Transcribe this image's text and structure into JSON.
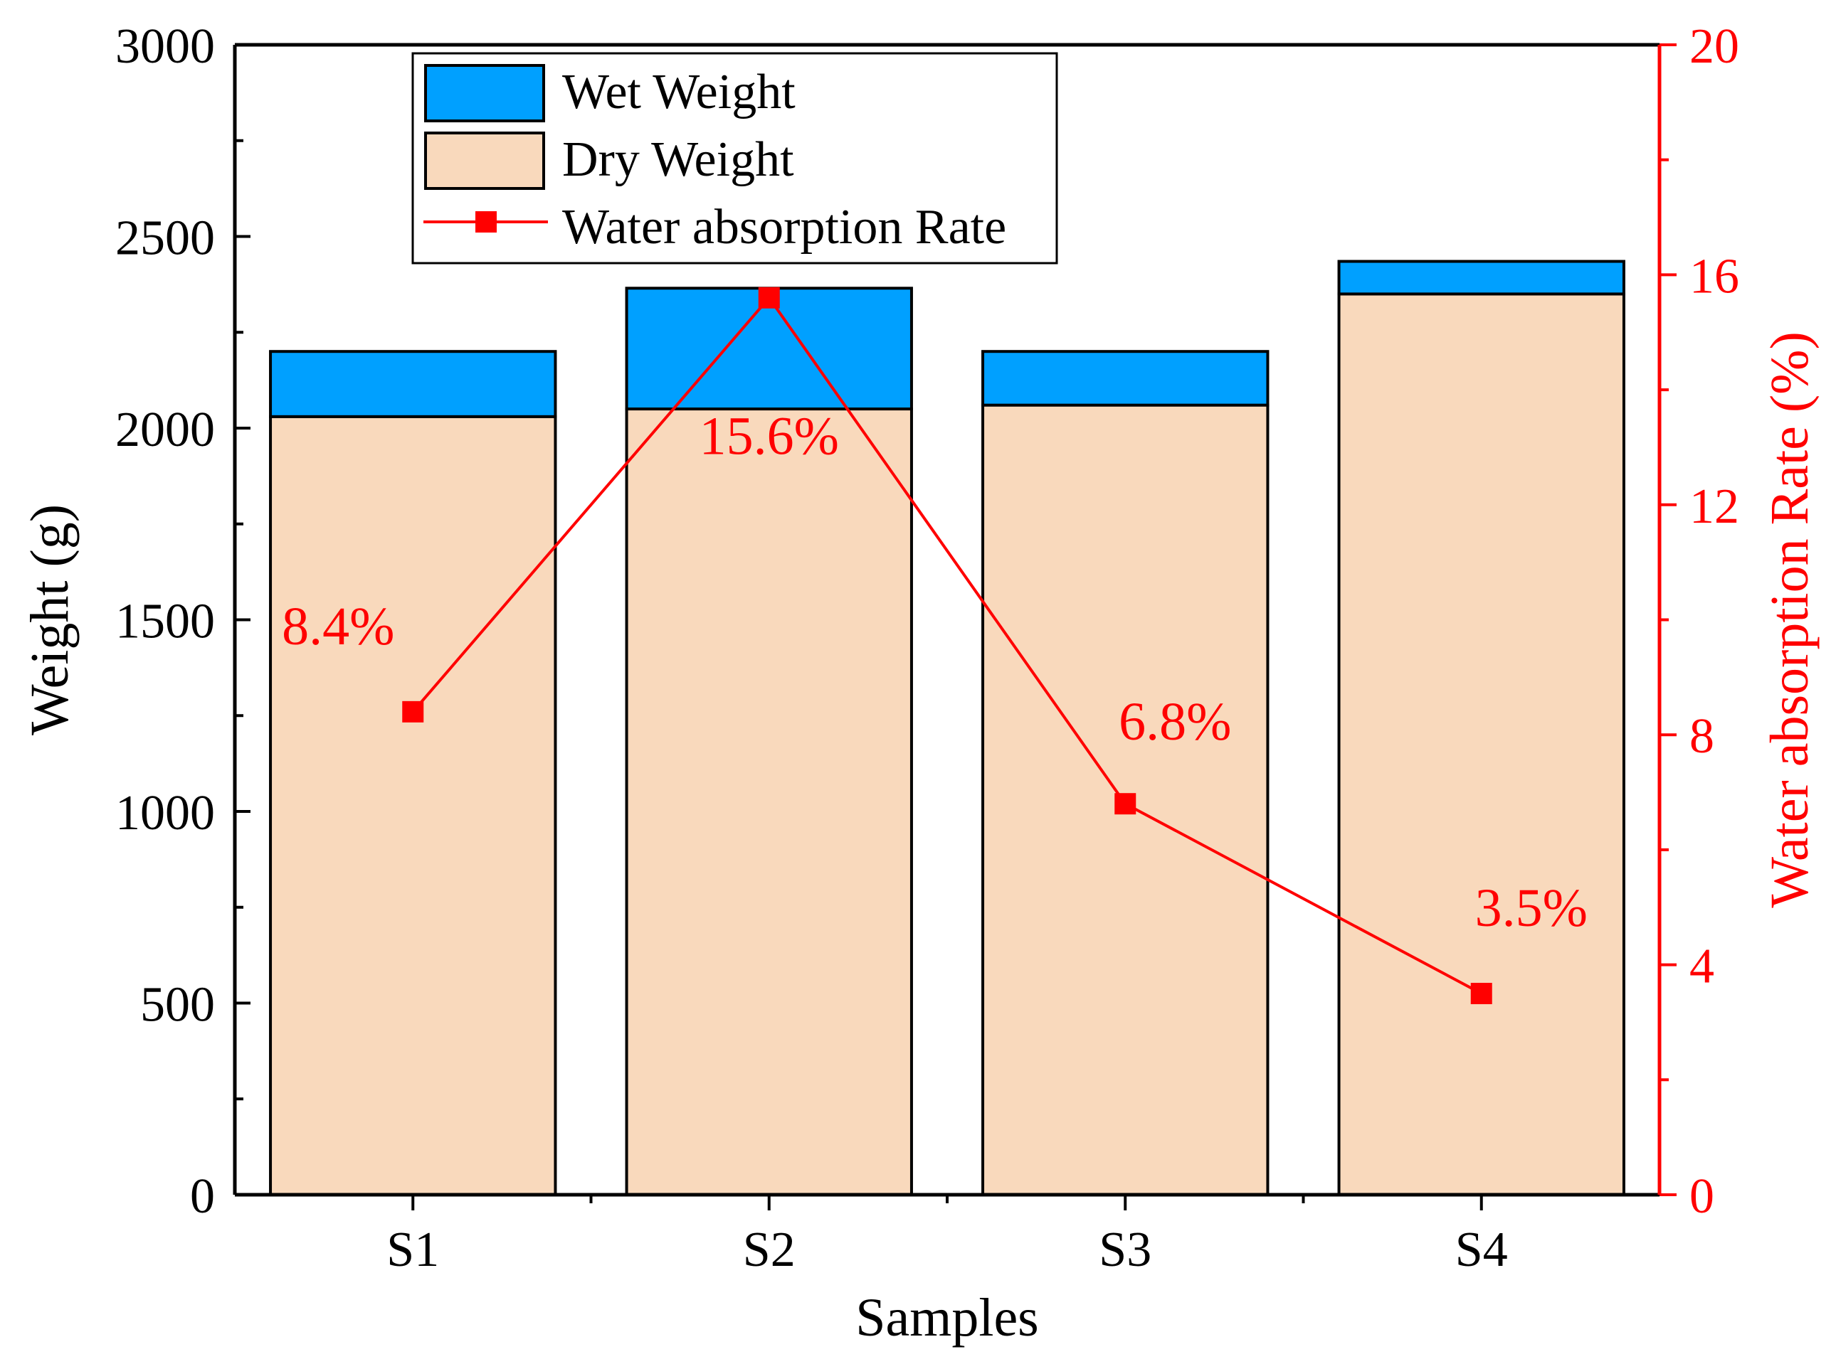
{
  "chart_data": {
    "type": "bar",
    "stacked": true,
    "categories": [
      "S1",
      "S2",
      "S3",
      "S4"
    ],
    "series": [
      {
        "name": "Dry Weight",
        "axis": "left",
        "values": [
          2030,
          2050,
          2060,
          2350
        ],
        "color": "#F9D9BC"
      },
      {
        "name": "Wet Weight",
        "axis": "left",
        "values": [
          170,
          315,
          140,
          85
        ],
        "color": "#00A0FF"
      }
    ],
    "line_series": {
      "name": "Water absorption Rate",
      "axis": "right",
      "values": [
        8.4,
        15.6,
        6.8,
        3.5
      ],
      "labels": [
        "8.4%",
        "15.6%",
        "6.8%",
        "3.5%"
      ],
      "color": "#FF0000"
    },
    "xlabel": "Samples",
    "ylabel": "Weight (g)",
    "y2label": "Water absorption Rate (%)",
    "ylim": [
      0,
      3000
    ],
    "y2lim": [
      0,
      20
    ],
    "yticks": [
      0,
      500,
      1000,
      1500,
      2000,
      2500,
      3000
    ],
    "y2ticks": [
      0,
      4,
      8,
      12,
      16,
      20
    ],
    "legend": {
      "position": "top-left",
      "entries": [
        "Wet Weight",
        "Dry Weight",
        "Water absorption Rate"
      ]
    }
  }
}
